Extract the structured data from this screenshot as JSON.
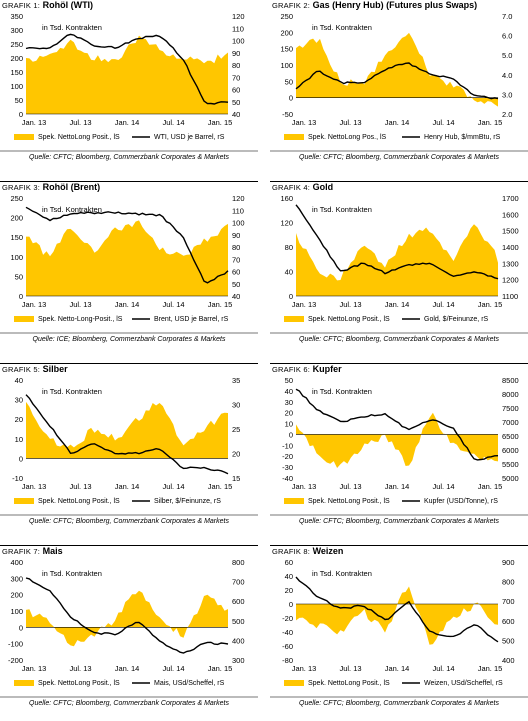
{
  "colors": {
    "area": "#FFC600",
    "line": "#000000"
  },
  "charts": [
    {
      "grafik": "Grafik 1:",
      "name": "Rohöl (WTI)",
      "unit_label": "in Tsd. Kontrakten",
      "source": "Quelle: CFTC; Bloomberg, Commerzbank Corporates & Markets",
      "legend_area": "Spek. NettoLong Posit., lS",
      "legend_line": "WTI, USD je Barrel, rS",
      "x_ticks": [
        "Jan. 13",
        "Jul. 13",
        "Jan. 14",
        "Jul. 14",
        "Jan. 15"
      ],
      "left_ticks": [
        "350",
        "300",
        "250",
        "200",
        "150",
        "100",
        "50",
        "0"
      ],
      "right_ticks": [
        "120",
        "110",
        "100",
        "90",
        "80",
        "70",
        "60",
        "50",
        "40"
      ]
    },
    {
      "grafik": "Grafik 2:",
      "name": "Gas (Henry Hub) (Futures plus Swaps)",
      "unit_label": "in Tsd. Kontrakten",
      "source": "Quelle: CFTC; Bloomberg, Commerzbank Corporates & Markets",
      "legend_area": "Spek. NettoLong Pos., lS",
      "legend_line": "Henry Hub, $/mmBtu, rS",
      "x_ticks": [
        "Jan. 13",
        "Jul. 13",
        "Jan. 14",
        "Jul. 14",
        "Jan. 15"
      ],
      "left_ticks": [
        "250",
        "200",
        "150",
        "100",
        "50",
        "0",
        "-50"
      ],
      "right_ticks": [
        "7.0",
        "6.0",
        "5.0",
        "4.0",
        "3.0",
        "2.0"
      ]
    },
    {
      "grafik": "Grafik 3:",
      "name": "Rohöl (Brent)",
      "unit_label": "in Tsd. Kontrakten",
      "source": "Quelle: ICE; Bloomberg, Commerzbank Corporates & Markets",
      "legend_area": "Spek. Netto-Long-Posit., lS",
      "legend_line": "Brent, USD je Barrel, rS",
      "x_ticks": [
        "Jan. 13",
        "Jul. 13",
        "Jan. 14",
        "Jul. 14",
        "Jan. 15"
      ],
      "left_ticks": [
        "250",
        "200",
        "150",
        "100",
        "50",
        "0"
      ],
      "right_ticks": [
        "120",
        "110",
        "100",
        "90",
        "80",
        "70",
        "60",
        "50",
        "40"
      ]
    },
    {
      "grafik": "Grafik 4:",
      "name": "Gold",
      "unit_label": "in Tsd. Kontrakten",
      "source": "Quelle: CFTC; Bloomberg, Commerzbank Corporates & Markets",
      "legend_area": "Spek. NettoLong Posit., lS",
      "legend_line": "Gold, $/Feinunze, rS",
      "x_ticks": [
        "Jan. 13",
        "Jul. 13",
        "Jan. 14",
        "Jul. 14",
        "Jan. 15"
      ],
      "left_ticks": [
        "160",
        "120",
        "80",
        "40",
        "0"
      ],
      "right_ticks": [
        "1700",
        "1600",
        "1500",
        "1400",
        "1300",
        "1200",
        "1100"
      ]
    },
    {
      "grafik": "Grafik 5:",
      "name": "Silber",
      "unit_label": "in Tsd. Kontrakten",
      "source": "Quelle: CFTC; Bloomberg, Commerzbank Corporates & Markets",
      "legend_area": "Spek. NettoLong Posit., lS",
      "legend_line": "Silber, $/Feinunze, rS",
      "x_ticks": [
        "Jan. 13",
        "Jul. 13",
        "Jan. 14",
        "Jul. 14",
        "Jan. 15"
      ],
      "left_ticks": [
        "40",
        "30",
        "20",
        "10",
        "0",
        "-10"
      ],
      "right_ticks": [
        "35",
        "30",
        "25",
        "20",
        "15"
      ]
    },
    {
      "grafik": "Grafik 6:",
      "name": "Kupfer",
      "unit_label": "in Tsd. Kontrakten",
      "source": "Quelle: CFTC; Bloomberg, Commerzbank Corporates & Markets",
      "legend_area": "Spek. NettoLong Posit., lS",
      "legend_line": "Kupfer (USD/Tonne), rS",
      "x_ticks": [
        "Jan. 13",
        "Jul. 13",
        "Jan. 14",
        "Jul. 14",
        "Jan. 15"
      ],
      "left_ticks": [
        "50",
        "40",
        "30",
        "20",
        "10",
        "0",
        "-10",
        "-20",
        "-30",
        "-40"
      ],
      "right_ticks": [
        "8500",
        "8000",
        "7500",
        "7000",
        "6500",
        "6000",
        "5500",
        "5000"
      ]
    },
    {
      "grafik": "Grafik 7:",
      "name": "Mais",
      "unit_label": "in Tsd. Kontrakten",
      "source": "Quelle: CFTC; Bloomberg, Commerzbank Corporates & Markets",
      "legend_area": "Spek. NettoLong Posit., lS",
      "legend_line": "Mais, USd/Scheffel, rS",
      "x_ticks": [
        "Jan. 13",
        "Jul. 13",
        "Jan. 14",
        "Jul. 14",
        "Jan. 15"
      ],
      "left_ticks": [
        "400",
        "300",
        "200",
        "100",
        "0",
        "-100",
        "-200"
      ],
      "right_ticks": [
        "800",
        "700",
        "600",
        "500",
        "400",
        "300"
      ]
    },
    {
      "grafik": "Grafik 8:",
      "name": "Weizen",
      "unit_label": "in Tsd. Kontrakten",
      "source": "Quelle: CFTC; Bloomberg, Commerzbank Corporates & Markets",
      "legend_area": "Spek. NettoLong Posit., lS",
      "legend_line": "Weizen, USd/Scheffel, rS",
      "x_ticks": [
        "Jan. 13",
        "Jul. 13",
        "Jan. 14",
        "Jul. 14",
        "Jan. 15"
      ],
      "left_ticks": [
        "60",
        "40",
        "20",
        "0",
        "-20",
        "-40",
        "-60",
        "-80"
      ],
      "right_ticks": [
        "900",
        "800",
        "700",
        "600",
        "500",
        "400"
      ]
    }
  ],
  "chart_data": [
    {
      "type": "area",
      "title": "Rohöl (WTI)",
      "x": [
        "2013-01",
        "2013-04",
        "2013-07",
        "2013-10",
        "2014-01",
        "2014-04",
        "2014-07",
        "2014-10",
        "2015-01",
        "2015-02"
      ],
      "series": [
        {
          "name": "Spek. NettoLong Posit., lS",
          "axis": "left",
          "values": [
            190,
            210,
            260,
            200,
            190,
            270,
            230,
            200,
            185,
            210
          ]
        },
        {
          "name": "WTI, USD je Barrel, rS",
          "axis": "right",
          "values": [
            94,
            93,
            106,
            96,
            94,
            102,
            104,
            85,
            48,
            50
          ]
        }
      ],
      "ylim": [
        0,
        350
      ],
      "ylim_right": [
        40,
        120
      ]
    },
    {
      "type": "area",
      "title": "Gas (Henry Hub) (Futures plus Swaps)",
      "x": [
        "2013-01",
        "2013-04",
        "2013-07",
        "2013-10",
        "2014-01",
        "2014-04",
        "2014-07",
        "2014-10",
        "2015-01",
        "2015-02"
      ],
      "series": [
        {
          "name": "Spek. NettoLong Pos., lS",
          "axis": "left",
          "values": [
            150,
            180,
            50,
            40,
            130,
            200,
            70,
            40,
            -10,
            -20
          ]
        },
        {
          "name": "Henry Hub, $/mmBtu, rS",
          "axis": "right",
          "values": [
            3.3,
            4.2,
            3.6,
            3.6,
            4.3,
            4.6,
            4.0,
            3.8,
            2.9,
            2.8
          ]
        }
      ],
      "ylim": [
        -50,
        250
      ],
      "ylim_right": [
        2.0,
        7.0
      ]
    },
    {
      "type": "area",
      "title": "Rohöl (Brent)",
      "x": [
        "2013-01",
        "2013-04",
        "2013-07",
        "2013-10",
        "2014-01",
        "2014-04",
        "2014-07",
        "2014-10",
        "2015-01",
        "2015-02"
      ],
      "series": [
        {
          "name": "Spek. Netto-Long-Posit., lS",
          "axis": "left",
          "values": [
            160,
            100,
            180,
            110,
            170,
            190,
            120,
            100,
            140,
            180
          ]
        },
        {
          "name": "Brent, USD je Barrel, rS",
          "axis": "right",
          "values": [
            112,
            102,
            107,
            108,
            108,
            107,
            106,
            88,
            50,
            60
          ]
        }
      ],
      "ylim": [
        0,
        250
      ],
      "ylim_right": [
        40,
        120
      ]
    },
    {
      "type": "area",
      "title": "Gold",
      "x": [
        "2013-01",
        "2013-04",
        "2013-07",
        "2013-10",
        "2014-01",
        "2014-04",
        "2014-07",
        "2014-10",
        "2015-01",
        "2015-02"
      ],
      "series": [
        {
          "name": "Spek. NettoLong Posit., lS",
          "axis": "left",
          "values": [
            100,
            40,
            30,
            80,
            50,
            100,
            110,
            60,
            120,
            60
          ]
        },
        {
          "name": "Gold, $/Feinunze, rS",
          "axis": "right",
          "values": [
            1660,
            1450,
            1250,
            1300,
            1240,
            1290,
            1300,
            1220,
            1250,
            1210
          ]
        }
      ],
      "ylim": [
        0,
        160
      ],
      "ylim_right": [
        1100,
        1700
      ]
    },
    {
      "type": "area",
      "title": "Silber",
      "x": [
        "2013-01",
        "2013-04",
        "2013-07",
        "2013-10",
        "2014-01",
        "2014-04",
        "2014-07",
        "2014-10",
        "2015-01",
        "2015-02"
      ],
      "series": [
        {
          "name": "Spek. NettoLong Posit., lS",
          "axis": "left",
          "values": [
            30,
            10,
            5,
            15,
            10,
            20,
            30,
            5,
            15,
            25
          ]
        },
        {
          "name": "Silber, $/Feinunze, rS",
          "axis": "right",
          "values": [
            32,
            26,
            20,
            22,
            20,
            20,
            21,
            17,
            17,
            16
          ]
        }
      ],
      "ylim": [
        -10,
        40
      ],
      "ylim_right": [
        15,
        35
      ]
    },
    {
      "type": "area",
      "title": "Kupfer",
      "x": [
        "2013-01",
        "2013-04",
        "2013-07",
        "2013-10",
        "2014-01",
        "2014-04",
        "2014-07",
        "2014-10",
        "2015-01",
        "2015-02"
      ],
      "series": [
        {
          "name": "Spek. NettoLong Posit., lS",
          "axis": "left",
          "values": [
            10,
            -20,
            -30,
            -10,
            0,
            -30,
            20,
            -10,
            -20,
            -25
          ]
        },
        {
          "name": "Kupfer (USD/Tonne), rS",
          "axis": "right",
          "values": [
            8200,
            7400,
            7000,
            7200,
            7300,
            6700,
            7100,
            6800,
            5600,
            5800
          ]
        }
      ],
      "ylim": [
        -40,
        50
      ],
      "ylim_right": [
        5000,
        8500
      ]
    },
    {
      "type": "area",
      "title": "Mais",
      "x": [
        "2013-01",
        "2013-04",
        "2013-07",
        "2013-10",
        "2014-01",
        "2014-04",
        "2014-07",
        "2014-10",
        "2015-01",
        "2015-02"
      ],
      "series": [
        {
          "name": "Spek. NettoLong Posit., lS",
          "axis": "left",
          "values": [
            100,
            50,
            -100,
            -50,
            50,
            250,
            50,
            -50,
            200,
            100
          ]
        },
        {
          "name": "Mais, USd/Scheffel, rS",
          "axis": "right",
          "values": [
            720,
            660,
            520,
            440,
            430,
            500,
            390,
            330,
            390,
            380
          ]
        }
      ],
      "ylim": [
        -200,
        400
      ],
      "ylim_right": [
        300,
        800
      ]
    },
    {
      "type": "area",
      "title": "Weizen",
      "x": [
        "2013-01",
        "2013-04",
        "2013-07",
        "2013-10",
        "2014-01",
        "2014-04",
        "2014-07",
        "2014-10",
        "2015-01",
        "2015-02"
      ],
      "series": [
        {
          "name": "Spek. NettoLong Posit., lS",
          "axis": "left",
          "values": [
            -20,
            -30,
            -40,
            -10,
            -40,
            30,
            -60,
            -20,
            0,
            -30
          ]
        },
        {
          "name": "Weizen, USd/Scheffel, rS",
          "axis": "right",
          "values": [
            820,
            720,
            660,
            680,
            600,
            700,
            540,
            520,
            580,
            490
          ]
        }
      ],
      "ylim": [
        -80,
        60
      ],
      "ylim_right": [
        400,
        900
      ]
    }
  ]
}
